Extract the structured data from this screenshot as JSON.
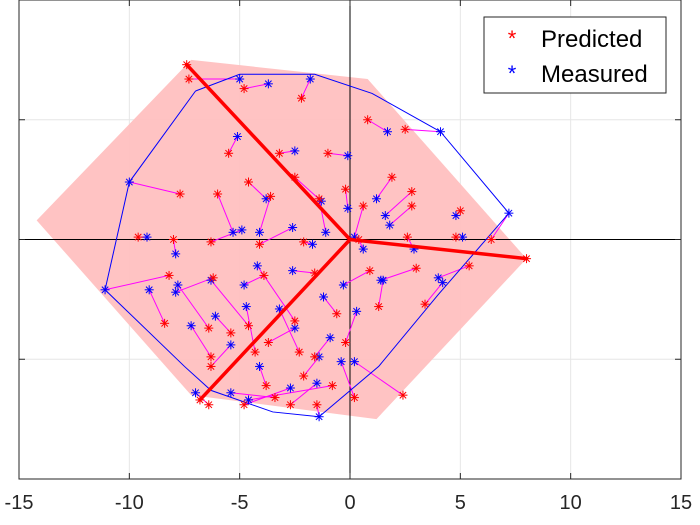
{
  "chart_data": {
    "type": "scatter",
    "title": "",
    "xlabel": "",
    "ylabel": "",
    "xlim": [
      -15,
      15
    ],
    "ylim": [
      -10,
      10
    ],
    "x_ticks": [
      -15,
      -10,
      -5,
      0,
      5,
      10,
      15
    ],
    "x_tick_labels": [
      "-15",
      "-10",
      "-5",
      "0",
      "5",
      "10",
      "15"
    ],
    "y_ticks": [
      -10,
      -5,
      0,
      5,
      10
    ],
    "grid": true,
    "zero_lines": true,
    "legend": {
      "position": "top-right",
      "entries": [
        "Predicted",
        "Measured"
      ]
    },
    "colors": {
      "predicted": "#ff0000",
      "measured": "#0000ff",
      "connector": "#ff00ff",
      "region_fill": "#ffc0c0",
      "axes_line": "#000000",
      "hull": "#0000ff",
      "spokes": "#ff0000"
    },
    "region_polygon": [
      [
        -7.2,
        7.5
      ],
      [
        0.8,
        6.7
      ],
      [
        8,
        -0.8
      ],
      [
        1.2,
        -7.5
      ],
      [
        -7.2,
        -6.5
      ],
      [
        -14.2,
        0.8
      ]
    ],
    "measured_hull": [
      [
        -7,
        6.2
      ],
      [
        -5,
        6.9
      ],
      [
        -1.6,
        6.9
      ],
      [
        1,
        6.1
      ],
      [
        4.1,
        4.5
      ],
      [
        7.2,
        1.1
      ],
      [
        4,
        -2.3
      ],
      [
        1.3,
        -5.3
      ],
      [
        -1.4,
        -7.4
      ],
      [
        -3.5,
        -7.2
      ],
      [
        -6.3,
        -6.3
      ],
      [
        -7.5,
        -5.3
      ],
      [
        -11.1,
        -2.1
      ],
      [
        -10,
        2.4
      ],
      [
        -7,
        6.2
      ]
    ],
    "spokes": [
      {
        "from": [
          0,
          0
        ],
        "to": [
          -7.4,
          7.3
        ]
      },
      {
        "from": [
          0,
          0
        ],
        "to": [
          8,
          -0.8
        ]
      },
      {
        "from": [
          0,
          0
        ],
        "to": [
          -6.8,
          -6.7
        ]
      }
    ],
    "series": [
      {
        "name": "Predicted",
        "x": [
          -7.3,
          -4.8,
          -2.2,
          0.8,
          2.5,
          -5.5,
          -3.2,
          -1,
          1.9,
          -4.6,
          -2.5,
          -0.2,
          2.8,
          -7.7,
          -6,
          -3.6,
          -1.4,
          0.6,
          2.8,
          5,
          -9.6,
          -8,
          -6.3,
          -4.1,
          -2.1,
          0.4,
          2.6,
          4.8,
          6.4,
          -8.2,
          -6.2,
          -3.9,
          -1.6,
          0.9,
          3,
          5.4,
          -8.4,
          -6.4,
          -4.6,
          -2.5,
          -0.6,
          1.3,
          3.4,
          -6.3,
          -4.3,
          -2.3,
          -0.2,
          -5.4,
          -3.7,
          -1.6,
          -6.3,
          -3.8,
          -2.1,
          0.2,
          -4.8,
          -2.7,
          -0.8,
          2.4,
          -6.4,
          -3.4,
          -1.5
        ],
        "y": [
          6.7,
          6.3,
          5.9,
          5,
          4.6,
          3.6,
          3.6,
          3.6,
          2.6,
          2.4,
          2.6,
          2.1,
          2,
          1.9,
          1.9,
          1.8,
          1.7,
          1.4,
          1.4,
          1.2,
          0.1,
          0,
          -0.1,
          -0.2,
          -0.1,
          0,
          0.1,
          0.1,
          0,
          -1.5,
          -1.6,
          -1.5,
          -1.4,
          -1.3,
          -1.2,
          -1.1,
          -3.5,
          -3.7,
          -3.6,
          -3.4,
          -3.1,
          -2.8,
          -2.7,
          -4.9,
          -4.7,
          -4.7,
          -4.3,
          -3.9,
          -4.3,
          -4.9,
          -5.3,
          -6.1,
          -5.7,
          -6.6,
          -6.9,
          -6.9,
          -6.1,
          -6.5,
          -6.9,
          -6.6,
          -6.9
        ]
      },
      {
        "name": "Measured",
        "x": [
          -5,
          -3.7,
          -1.8,
          1.7,
          4.1,
          -5.1,
          -2.5,
          -0.1,
          1.2,
          -3.8,
          -1.3,
          -0.1,
          1.6,
          -10,
          -5.3,
          -4.1,
          -1.1,
          0.2,
          1.8,
          4.8,
          -9.2,
          -7.9,
          -4.9,
          -2.6,
          -1.7,
          0.6,
          2.9,
          5.1,
          7.2,
          -11.1,
          -7.9,
          -4.8,
          -2.6,
          -0.3,
          1.4,
          4,
          -9.1,
          -7.8,
          -6.3,
          -4.2,
          -1.2,
          1.5,
          4.2,
          -7.2,
          -4.7,
          -3.2,
          0.3,
          -6.1,
          -2.5,
          -0.9,
          -5.4,
          -4.1,
          -1.4,
          -0.4,
          -2.7,
          -1.5,
          -4.6,
          0.2,
          -7,
          -5.4,
          -1.4
        ],
        "y": [
          6.7,
          6.5,
          6.7,
          4.5,
          4.5,
          4.3,
          3.7,
          3.5,
          1.7,
          1.7,
          1.6,
          1.3,
          1,
          2.4,
          0.3,
          0.3,
          0.3,
          0.1,
          0.6,
          1,
          0.1,
          -0.6,
          0.4,
          0.5,
          -0.2,
          -0.4,
          -0.4,
          0.1,
          1.1,
          -2.1,
          -2.2,
          -1.9,
          -1.3,
          -1.9,
          -1.7,
          -1.6,
          -2.1,
          -1.9,
          -1.7,
          -1.1,
          -2.4,
          -1.7,
          -1.8,
          -3.6,
          -2.8,
          -2.9,
          -3,
          -3.2,
          -3.7,
          -4.1,
          -4.4,
          -5.3,
          -4.9,
          -5.1,
          -6.2,
          -6,
          -6.7,
          -5.1,
          -6.4,
          -6.4,
          -7.4
        ]
      }
    ]
  }
}
